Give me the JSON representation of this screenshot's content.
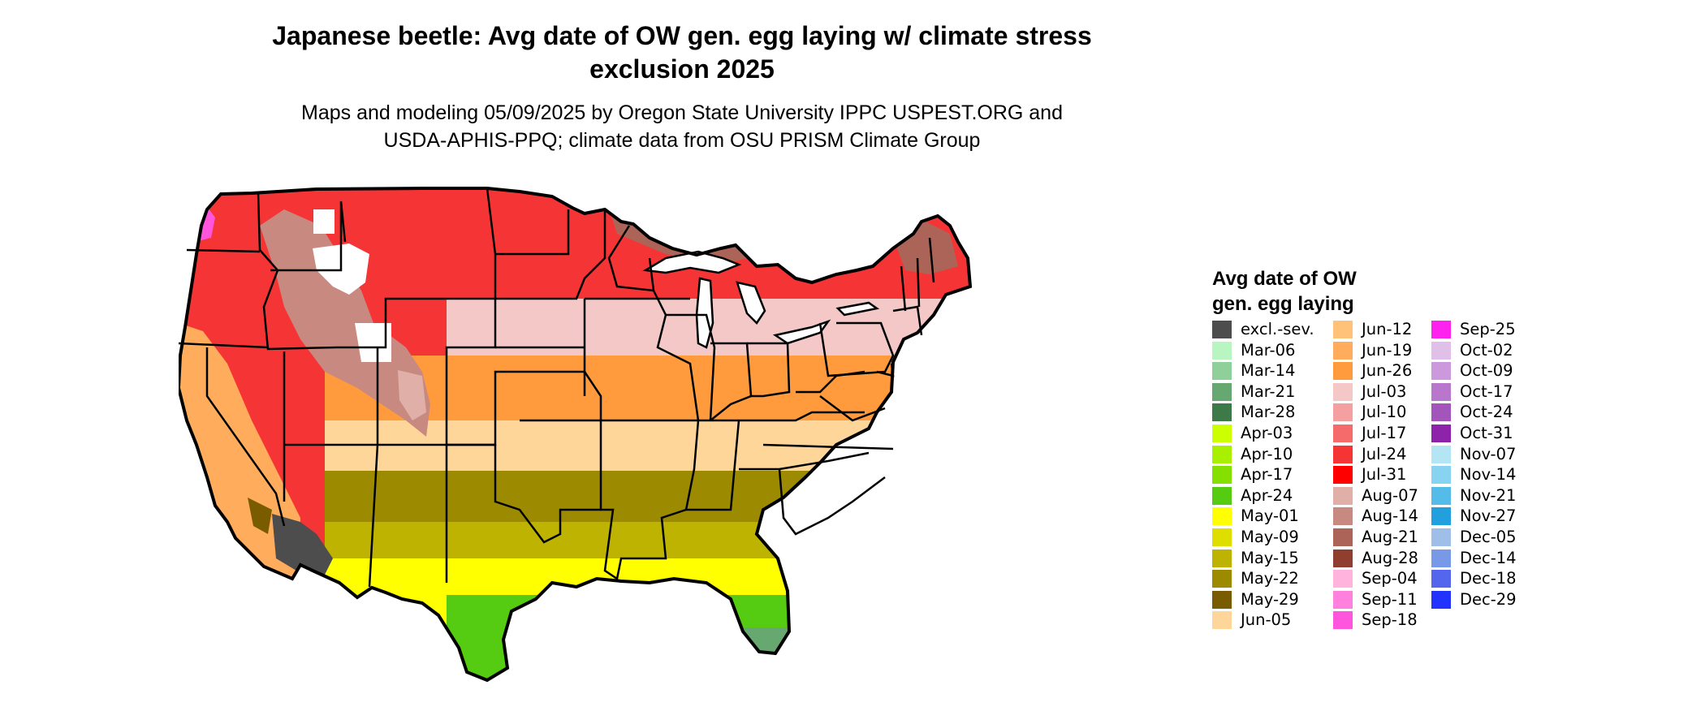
{
  "title": {
    "line1": "Japanese beetle: Avg date of OW gen. egg laying w/ climate stress",
    "line2": "exclusion 2025"
  },
  "subtitle": {
    "line1": "Maps and modeling 05/09/2025 by Oregon State University IPPC USPEST.ORG and",
    "line2": "USDA-APHIS-PPQ; climate data from OSU PRISM Climate Group"
  },
  "legend": {
    "title_line1": "Avg date of OW",
    "title_line2": "gen. egg laying",
    "columns": [
      [
        {
          "label": "excl.-sev.",
          "color": "#4d4d4d"
        },
        {
          "label": "Mar-06",
          "color": "#b8f5c0"
        },
        {
          "label": "Mar-14",
          "color": "#8fcf99"
        },
        {
          "label": "Mar-21",
          "color": "#66a870"
        },
        {
          "label": "Mar-28",
          "color": "#3d7a47"
        },
        {
          "label": "Apr-03",
          "color": "#ccff00"
        },
        {
          "label": "Apr-10",
          "color": "#a8f000"
        },
        {
          "label": "Apr-17",
          "color": "#85e000"
        },
        {
          "label": "Apr-24",
          "color": "#55cc11"
        },
        {
          "label": "May-01",
          "color": "#ffff00"
        },
        {
          "label": "May-09",
          "color": "#dede00"
        },
        {
          "label": "May-15",
          "color": "#bdb300"
        },
        {
          "label": "May-22",
          "color": "#9c8a00"
        },
        {
          "label": "May-29",
          "color": "#7a5c00"
        },
        {
          "label": "Jun-05",
          "color": "#ffd699"
        }
      ],
      [
        {
          "label": "Jun-12",
          "color": "#ffc278"
        },
        {
          "label": "Jun-19",
          "color": "#ffad5c"
        },
        {
          "label": "Jun-26",
          "color": "#ff9a3d"
        },
        {
          "label": "Jul-03",
          "color": "#f5c8c8"
        },
        {
          "label": "Jul-10",
          "color": "#f5a0a0"
        },
        {
          "label": "Jul-17",
          "color": "#f56b6b"
        },
        {
          "label": "Jul-24",
          "color": "#f53535"
        },
        {
          "label": "Jul-31",
          "color": "#ff0000"
        },
        {
          "label": "Aug-07",
          "color": "#e0b0a8"
        },
        {
          "label": "Aug-14",
          "color": "#c88a80"
        },
        {
          "label": "Aug-21",
          "color": "#ad6458"
        },
        {
          "label": "Aug-28",
          "color": "#8f3e30"
        },
        {
          "label": "Sep-04",
          "color": "#ffb3dd"
        },
        {
          "label": "Sep-11",
          "color": "#ff80dd"
        },
        {
          "label": "Sep-18",
          "color": "#ff55dd"
        }
      ],
      [
        {
          "label": "Sep-25",
          "color": "#ff22ee"
        },
        {
          "label": "Oct-02",
          "color": "#e0c0e8"
        },
        {
          "label": "Oct-09",
          "color": "#cc99dd"
        },
        {
          "label": "Oct-17",
          "color": "#b877cc"
        },
        {
          "label": "Oct-24",
          "color": "#a455bb"
        },
        {
          "label": "Oct-31",
          "color": "#8f22aa"
        },
        {
          "label": "Nov-07",
          "color": "#b3e5f5"
        },
        {
          "label": "Nov-14",
          "color": "#88d4f0"
        },
        {
          "label": "Nov-21",
          "color": "#55bbe8"
        },
        {
          "label": "Nov-27",
          "color": "#22a0dd"
        },
        {
          "label": "Dec-05",
          "color": "#a0bfe8"
        },
        {
          "label": "Dec-14",
          "color": "#7799e8"
        },
        {
          "label": "Dec-18",
          "color": "#5566ee"
        },
        {
          "label": "Dec-29",
          "color": "#2233ff"
        }
      ]
    ]
  },
  "map": {
    "region": "Contiguous United States",
    "boundary_color": "#000000",
    "zones": [
      {
        "area": "Far north-west, Rockies & north-east",
        "date": "Jul-24",
        "color": "#f53535"
      },
      {
        "area": "Upper Midwest band",
        "date": "Jul-03",
        "color": "#f5c8c8"
      },
      {
        "area": "Central plains band",
        "date": "Jun-26",
        "color": "#ff9a3d"
      },
      {
        "area": "Mid-south band",
        "date": "Jun-05",
        "color": "#ffd699"
      },
      {
        "area": "Deep south band",
        "date": "May-22",
        "color": "#9c8a00"
      },
      {
        "area": "Gulf coast band",
        "date": "May-01",
        "color": "#ffff00"
      },
      {
        "area": "South Texas & central Florida",
        "date": "Apr-24",
        "color": "#55cc11"
      },
      {
        "area": "South Florida",
        "date": "Mar-21",
        "color": "#66a870"
      },
      {
        "area": "Desert Southwest",
        "date": "excl.-sev.",
        "color": "#4d4d4d"
      },
      {
        "area": "High mountains",
        "date": "Aug-14",
        "color": "#c88a80"
      }
    ]
  }
}
